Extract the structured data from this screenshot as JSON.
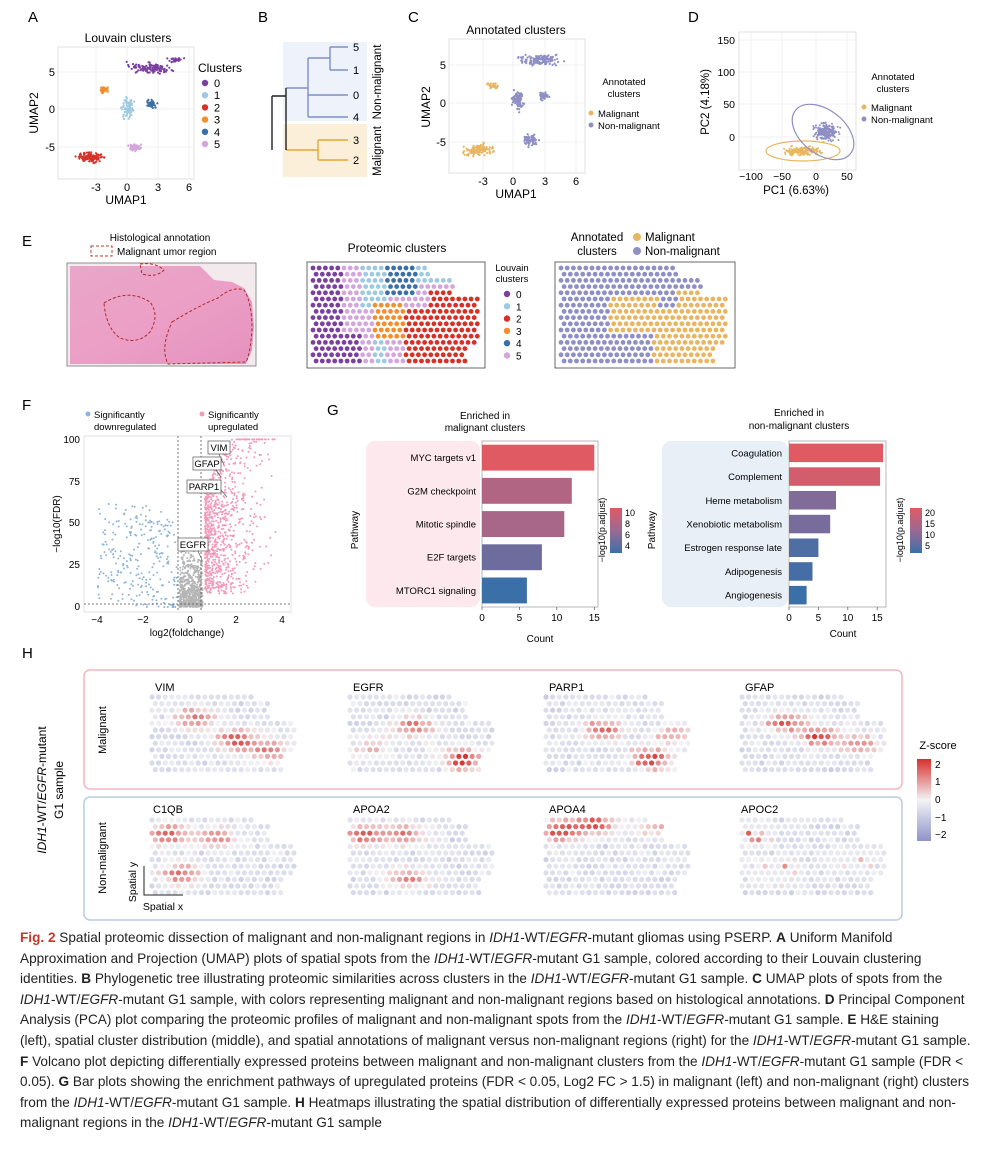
{
  "panels": {
    "A": {
      "label": "A",
      "chart_data": {
        "type": "scatter",
        "title": "Louvain clusters",
        "xlabel": "UMAP1",
        "ylabel": "UMAP2",
        "xticks": [
          "-3",
          "0",
          "3",
          "6"
        ],
        "yticks": [
          "5",
          "0",
          "-5"
        ],
        "legend": {
          "title": "Clusters",
          "entries": [
            "0",
            "1",
            "2",
            "3",
            "4",
            "5"
          ]
        }
      }
    },
    "B": {
      "label": "B",
      "chart_data": {
        "type": "tree",
        "leaves": [
          "5",
          "1",
          "0",
          "4",
          "3",
          "2"
        ],
        "groups": [
          {
            "name": "Non-malignant",
            "leaves": [
              "5",
              "1",
              "0",
              "4"
            ]
          },
          {
            "name": "Malignant",
            "leaves": [
              "3",
              "2"
            ]
          }
        ]
      }
    },
    "C": {
      "label": "C",
      "chart_data": {
        "type": "scatter",
        "title": "Annotated clusters",
        "xlabel": "UMAP1",
        "ylabel": "UMAP2",
        "xticks": [
          "-3",
          "0",
          "3",
          "6"
        ],
        "yticks": [
          "5",
          "0",
          "-5"
        ],
        "legend": {
          "title_line1": "Annotated",
          "title_line2": "clusters",
          "entries": [
            "Malignant",
            "Non-malignant"
          ]
        }
      }
    },
    "D": {
      "label": "D",
      "chart_data": {
        "type": "scatter",
        "xlabel": "PC1 (6.63%)",
        "ylabel": "PC2 (4.18%)",
        "xticks": [
          "−100",
          "−50",
          "0",
          "50"
        ],
        "yticks": [
          "150",
          "100",
          "50",
          "0"
        ],
        "xlim": [
          -125,
          62
        ],
        "ylim": [
          -15,
          155
        ],
        "legend": {
          "title_line1": "Annotated",
          "title_line2": "clusters",
          "entries": [
            "Malignant",
            "Non-malignant"
          ]
        }
      }
    },
    "E": {
      "label": "E",
      "he_title": "Histological annotation",
      "he_legend": "Malignant umor region",
      "prot_title": "Proteomic clusters",
      "prot_legend_title_1": "Louvain",
      "prot_legend_title_2": "clusters",
      "prot_legend_entries": [
        "0",
        "1",
        "2",
        "3",
        "4",
        "5"
      ],
      "annot_title_1": "Annotated",
      "annot_title_2": "clusters",
      "annot_entries": [
        "Malignant",
        "Non-malignant"
      ]
    },
    "F": {
      "label": "F",
      "chart_data": {
        "type": "scatter",
        "xlabel": "log2(foldchange)",
        "ylabel": "−log10(FDR)",
        "xticks": [
          "−4",
          "−2",
          "0",
          "2",
          "4"
        ],
        "yticks": [
          "100",
          "75",
          "50",
          "25",
          "0"
        ],
        "xlim": [
          -4.6,
          4.3
        ],
        "ylim": [
          -3,
          102
        ],
        "legend_down_1": "Significantly",
        "legend_down_2": "downregulated",
        "legend_up_1": "Significantly",
        "legend_up_2": "upregulated",
        "annotations": [
          "VIM",
          "GFAP",
          "PARP1",
          "EGFR"
        ]
      }
    },
    "G": {
      "label": "G",
      "left": {
        "chart_data": {
          "type": "bar",
          "orientation": "horizontal",
          "title_1": "Enriched in",
          "title_2": "malignant clusters",
          "ylabel": "Pathway",
          "xlabel": "Count",
          "categories": [
            "MYC targets v1",
            "G2M checkpoint",
            "Mitotic spindle",
            "E2F targets",
            "MTORC1 signaling"
          ],
          "values": [
            15,
            12,
            11,
            8,
            6
          ],
          "colorvalues": [
            10.5,
            8,
            7.5,
            5,
            3
          ],
          "xticks": [
            "0",
            "5",
            "10",
            "15"
          ],
          "xlim": [
            0,
            15.5
          ],
          "colorbar": {
            "label": "−log10(p.adjust)",
            "ticks": [
              "10",
              "8",
              "6",
              "4"
            ]
          }
        }
      },
      "right": {
        "chart_data": {
          "type": "bar",
          "orientation": "horizontal",
          "title_1": "Enriched in",
          "title_2": "non-malignant clusters",
          "ylabel": "Pathway",
          "xlabel": "Count",
          "categories": [
            "Coagulation",
            "Complement",
            "Heme metabolism",
            "Xenobiotic metabolism",
            "Estrogen response late",
            "Adipogenesis",
            "Angiogenesis"
          ],
          "values": [
            16,
            15.5,
            8,
            7,
            5,
            4,
            3
          ],
          "colorvalues": [
            22,
            20,
            10,
            9,
            5,
            4,
            3
          ],
          "xticks": [
            "0",
            "5",
            "10",
            "15"
          ],
          "xlim": [
            0,
            16.5
          ],
          "colorbar": {
            "label": "−log10(p.adjust)",
            "ticks": [
              "20",
              "15",
              "10",
              "5"
            ]
          }
        }
      }
    },
    "H": {
      "label": "H",
      "side_label_1": "-WT/",
      "side_label_2": "-mutant",
      "side_label_3": "G1 sample",
      "idh1": "IDH1",
      "egfr": "EGFR",
      "malignant_label": "Malignant",
      "nonmalignant_label": "Non-malignant",
      "malignant_genes": [
        "VIM",
        "EGFR",
        "PARP1",
        "GFAP"
      ],
      "nonmalignant_genes": [
        "C1QB",
        "APOA2",
        "APOA4",
        "APOC2"
      ],
      "spatial_x": "Spatial x",
      "spatial_y": "Spatial y",
      "zscore": {
        "title": "Z-score",
        "ticks": [
          "2",
          "1",
          "0",
          "−1",
          "−2"
        ]
      }
    }
  },
  "colors": {
    "cluster": [
      "#7b3fa0",
      "#9ecae1",
      "#d73027",
      "#f28e2b",
      "#3b6fa8",
      "#d4a6dc"
    ],
    "malignant": "#e8b660",
    "nonmalignant": "#8e8fc4",
    "up": "#f39ab8",
    "down": "#8fb6d8",
    "insig": "#b5b5b5",
    "malignant_box": "#f4b6c2",
    "nonmalignant_box": "#b8cce0",
    "tree_nonmal_bg": "#eef2fb",
    "tree_mal_bg": "#fbefd9"
  },
  "caption": {
    "fig": "Fig. 2",
    "s1": " Spatial proteomic dissection of malignant and non-malignant regions in ",
    "s2": "-WT/",
    "s3": "-mutant gliomas using PSERP. ",
    "pA": "A",
    "s4": " Uniform Manifold Approximation and Projection (UMAP) plots of spatial spots from the ",
    "s5": "-WT/",
    "s6": "-mutant G1 sample, colored according to their Louvain clustering identities. ",
    "pB": "B",
    "s7": " Phylogenetic tree illustrating proteomic similarities across clusters in the ",
    "s8": "-WT/",
    "s9": "-mutant G1 sample. ",
    "pC": "C",
    "s10": " UMAP plots of spots from the ",
    "s11": "-WT/",
    "s12": "-mutant G1 sample, with colors representing malignant and non-malignant regions based on histological annotations. ",
    "pD": "D",
    "s13": " Principal Component Analysis (PCA) plot comparing the proteomic profiles of malignant and non-malignant spots from the ",
    "s14": "-WT/",
    "s15": "-mutant G1 sample. ",
    "pE": "E",
    "s16": " H&E staining (left), spatial cluster distribution (middle), and spatial annotations of malignant versus non-malignant regions (right) for the ",
    "s17": "-WT/",
    "s18": "-mutant G1 sample. ",
    "pF": "F",
    "s19": " Volcano plot depicting differentially expressed proteins between malignant and non-malignant clusters from the ",
    "s20": "-WT/",
    "s21": "-mutant G1 sample (FDR < 0.05). ",
    "pG": "G",
    "s22": " Bar plots showing the enrichment pathways of upregulated proteins (FDR < 0.05, Log2 FC > 1.5) in malignant (left) and non-malignant (right) clusters from the ",
    "s23": "-WT/",
    "s24": "-mutant G1 sample. ",
    "pH": "H",
    "s25": " Heatmaps illustrating the spatial distribution of differentially expressed proteins between malignant and non-malignant regions in the ",
    "s26": "-WT/",
    "s27": "-mutant G1 sample",
    "idh1": "IDH1",
    "egfr": "EGFR"
  }
}
